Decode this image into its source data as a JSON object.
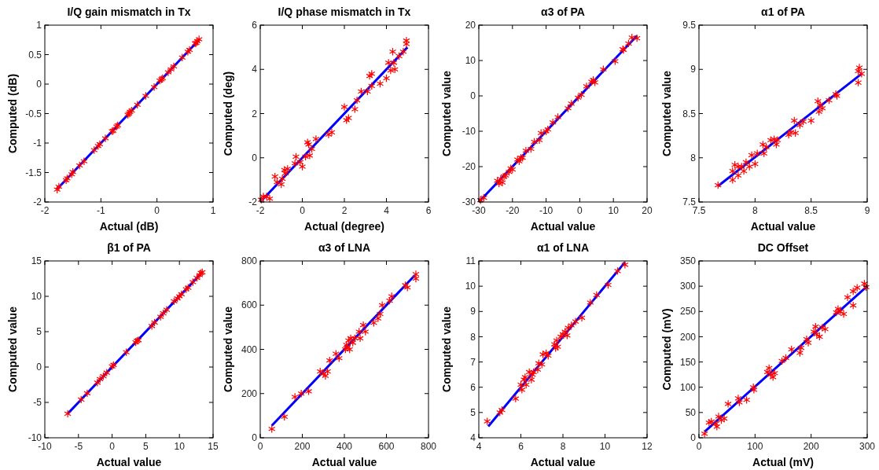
{
  "chart_data": [
    {
      "type": "scatter",
      "title": "I/Q gain mismatch in Tx",
      "xlabel": "Actual (dB)",
      "ylabel": "Computed (dB)",
      "xlim": [
        -2,
        1
      ],
      "ylim": [
        -2,
        1
      ],
      "xticks": [
        -2,
        -1,
        0,
        1
      ],
      "yticks": [
        -2,
        -1.5,
        -1,
        -0.5,
        0,
        0.5,
        1
      ],
      "series": [
        {
          "type": "scatter",
          "color": "#ff0000",
          "marker": "cross",
          "x": [
            -1.78,
            -1.75,
            -1.62,
            -1.6,
            -1.52,
            -1.5,
            -1.38,
            -1.3,
            -1.12,
            -1.05,
            -1.02,
            -0.92,
            -0.8,
            -0.78,
            -0.72,
            -0.7,
            -0.52,
            -0.5,
            -0.48,
            -0.45,
            -0.35,
            -0.2,
            -0.05,
            0.05,
            0.08,
            0.1,
            0.2,
            0.25,
            0.3,
            0.45,
            0.55,
            0.58,
            0.68,
            0.7,
            0.72,
            0.75
          ],
          "values": [
            -1.79,
            -1.74,
            -1.63,
            -1.6,
            -1.53,
            -1.49,
            -1.38,
            -1.31,
            -1.12,
            -1.05,
            -1.02,
            -0.92,
            -0.8,
            -0.79,
            -0.72,
            -0.7,
            -0.52,
            -0.5,
            -0.47,
            -0.45,
            -0.35,
            -0.2,
            -0.05,
            0.06,
            0.08,
            0.1,
            0.2,
            0.25,
            0.3,
            0.45,
            0.55,
            0.58,
            0.69,
            0.7,
            0.73,
            0.76
          ]
        },
        {
          "type": "line",
          "color": "#0000ff",
          "marker": "none",
          "line_style": "solid",
          "x": [
            -1.78,
            0.76
          ],
          "values": [
            -1.78,
            0.76
          ]
        }
      ]
    },
    {
      "type": "scatter",
      "title": "I/Q phase mismatch in Tx",
      "xlabel": "Actual (degree)",
      "ylabel": "Computed (deg)",
      "xlim": [
        -2,
        6
      ],
      "ylim": [
        -2,
        6
      ],
      "xticks": [
        -2,
        0,
        2,
        4,
        6
      ],
      "yticks": [
        -2,
        0,
        2,
        4,
        6
      ],
      "series": [
        {
          "type": "scatter",
          "color": "#ff0000",
          "marker": "cross",
          "x": [
            -1.95,
            -1.85,
            -1.7,
            -1.55,
            -1.3,
            -1.2,
            -1.0,
            -0.95,
            -0.85,
            -0.8,
            -0.7,
            -0.3,
            -0.35,
            -0.1,
            0,
            0.15,
            0.25,
            0.3,
            0.35,
            0.45,
            0.65,
            1.25,
            1.4,
            2.0,
            2.1,
            2.2,
            2.5,
            2.6,
            2.8,
            3.1,
            3.2,
            3.3,
            3.3,
            3.7,
            4.0,
            4.1,
            4.2,
            4.3,
            4.4,
            4.35,
            4.6,
            4.8,
            4.95,
            4.95
          ],
          "values": [
            -1.9,
            -1.75,
            -1.75,
            -1.85,
            -0.85,
            -1.1,
            -1.2,
            -0.95,
            -0.55,
            -0.7,
            -0.5,
            0.05,
            -0.25,
            -0.2,
            -0.4,
            0.05,
            0.7,
            0.6,
            0.1,
            0.4,
            0.85,
            1.05,
            1.15,
            2.3,
            1.7,
            1.8,
            2.2,
            2.6,
            3.0,
            3.0,
            3.7,
            3.8,
            3.25,
            3.35,
            3.6,
            4.3,
            3.95,
            4.8,
            4.0,
            4.3,
            4.6,
            4.8,
            5.3,
            5.15
          ]
        },
        {
          "type": "line",
          "color": "#0000ff",
          "marker": "none",
          "line_style": "solid",
          "x": [
            -1.9,
            5
          ],
          "values": [
            -1.9,
            5
          ]
        }
      ]
    },
    {
      "type": "scatter",
      "title": "α3 of PA",
      "xlabel": "Actual value",
      "ylabel": "Computed value",
      "xlim": [
        -30,
        20
      ],
      "ylim": [
        -30,
        20
      ],
      "xticks": [
        -30,
        -20,
        -10,
        0,
        10,
        20
      ],
      "yticks": [
        -30,
        -20,
        -10,
        0,
        10,
        20
      ],
      "series": [
        {
          "type": "scatter",
          "color": "#ff0000",
          "marker": "cross",
          "x": [
            -29.5,
            -28.5,
            -24.5,
            -24,
            -23.5,
            -23,
            -22.5,
            -22,
            -21,
            -20.5,
            -20,
            -18.5,
            -18,
            -17.5,
            -17,
            -16,
            -14.5,
            -13.5,
            -12,
            -11.5,
            -10,
            -9.5,
            -8,
            -6.5,
            -3.5,
            -2.5,
            -0.5,
            0.5,
            2,
            3.5,
            4,
            4.5,
            7,
            10.5,
            12.8,
            13,
            14.5,
            15.5,
            17
          ],
          "values": [
            -29.5,
            -28.8,
            -24,
            -24.8,
            -23.5,
            -24.5,
            -22.8,
            -22.5,
            -21.5,
            -20.5,
            -20.8,
            -18,
            -18.5,
            -17.5,
            -17.5,
            -15.5,
            -15,
            -13,
            -12.5,
            -10.5,
            -10,
            -9.5,
            -7.5,
            -6,
            -3.5,
            -2.2,
            -0.5,
            0.3,
            2.7,
            4,
            4.5,
            3.8,
            7.5,
            9.8,
            13.2,
            13,
            14.8,
            16.5,
            16.3
          ]
        },
        {
          "type": "line",
          "color": "#0000ff",
          "marker": "none",
          "line_style": "solid",
          "x": [
            -29.5,
            17
          ],
          "values": [
            -29.5,
            17
          ]
        }
      ]
    },
    {
      "type": "scatter",
      "title": "α1 of PA",
      "xlabel": "Actual value",
      "ylabel": "Computed value",
      "xlim": [
        7.5,
        9
      ],
      "ylim": [
        7.5,
        9.5
      ],
      "xticks": [
        7.5,
        8,
        8.5,
        9
      ],
      "yticks": [
        7.5,
        8,
        8.5,
        9,
        9.5
      ],
      "series": [
        {
          "type": "scatter",
          "color": "#ff0000",
          "marker": "cross",
          "x": [
            7.67,
            7.8,
            7.8,
            7.82,
            7.85,
            7.85,
            7.88,
            7.9,
            7.92,
            7.95,
            7.97,
            8.0,
            8.02,
            8.07,
            8.08,
            8.1,
            8.14,
            8.17,
            8.19,
            8.2,
            8.3,
            8.32,
            8.35,
            8.36,
            8.4,
            8.43,
            8.5,
            8.56,
            8.57,
            8.58,
            8.6,
            8.66,
            8.73,
            8.72,
            8.92,
            8.92,
            8.93,
            8.95
          ],
          "values": [
            7.69,
            7.75,
            7.85,
            7.92,
            7.9,
            7.8,
            7.9,
            7.85,
            7.95,
            7.9,
            8.03,
            7.93,
            8.05,
            8.15,
            8.05,
            8.12,
            8.2,
            8.21,
            8.15,
            8.2,
            8.26,
            8.29,
            8.42,
            8.28,
            8.37,
            8.41,
            8.42,
            8.64,
            8.52,
            8.6,
            8.56,
            8.65,
            8.7,
            8.72,
            8.85,
            8.98,
            9.02,
            8.95
          ]
        },
        {
          "type": "line",
          "color": "#0000ff",
          "marker": "none",
          "line_style": "solid",
          "x": [
            7.67,
            8.95
          ],
          "values": [
            7.68,
            8.95
          ]
        }
      ]
    },
    {
      "type": "scatter",
      "title": "β1 of PA",
      "xlabel": "Actual value",
      "ylabel": "Computed value",
      "xlim": [
        -10,
        15
      ],
      "ylim": [
        -10,
        15
      ],
      "xticks": [
        -10,
        -5,
        0,
        5,
        10,
        15
      ],
      "yticks": [
        -10,
        -5,
        0,
        5,
        10,
        15
      ],
      "series": [
        {
          "type": "scatter",
          "color": "#ff0000",
          "marker": "cross",
          "x": [
            -6.6,
            -4.6,
            -3.7,
            -2.2,
            -1.8,
            -1.3,
            -0.8,
            0,
            0.2,
            2.1,
            3.5,
            3.7,
            3.9,
            5.9,
            6.3,
            7.2,
            7.6,
            8.1,
            9.2,
            9.7,
            10,
            10.3,
            11,
            11.3,
            12,
            12.6,
            13,
            13.2,
            13.4
          ],
          "values": [
            -6.6,
            -4.6,
            -3.7,
            -2.2,
            -1.7,
            -1.3,
            -0.8,
            0.1,
            0.3,
            2.1,
            3.5,
            3.7,
            3.8,
            5.8,
            6.3,
            7.1,
            7.6,
            8.1,
            9.3,
            9.7,
            10,
            10.3,
            11,
            11.2,
            12,
            12.6,
            13,
            13.3,
            13.4
          ]
        },
        {
          "type": "line",
          "color": "#0000ff",
          "marker": "none",
          "line_style": "solid",
          "x": [
            -6.6,
            13.4
          ],
          "values": [
            -6.6,
            13.4
          ]
        }
      ]
    },
    {
      "type": "scatter",
      "title": "α3 of LNA",
      "xlabel": "Actual value",
      "ylabel": "Computed value",
      "xlim": [
        0,
        800
      ],
      "ylim": [
        0,
        800
      ],
      "xticks": [
        0,
        200,
        400,
        600,
        800
      ],
      "yticks": [
        0,
        200,
        400,
        600,
        800
      ],
      "series": [
        {
          "type": "scatter",
          "color": "#ff0000",
          "marker": "cross",
          "x": [
            55,
            115,
            165,
            195,
            230,
            285,
            300,
            310,
            320,
            330,
            360,
            375,
            405,
            410,
            415,
            420,
            425,
            430,
            440,
            450,
            470,
            475,
            490,
            500,
            540,
            560,
            570,
            580,
            615,
            625,
            690,
            700,
            740,
            740
          ],
          "values": [
            40,
            95,
            185,
            200,
            210,
            300,
            290,
            280,
            300,
            350,
            380,
            360,
            400,
            420,
            410,
            440,
            400,
            450,
            430,
            450,
            480,
            450,
            510,
            480,
            520,
            540,
            560,
            600,
            620,
            640,
            690,
            680,
            740,
            720
          ]
        },
        {
          "type": "line",
          "color": "#0000ff",
          "marker": "none",
          "line_style": "solid",
          "x": [
            55,
            735
          ],
          "values": [
            55,
            735
          ]
        }
      ]
    },
    {
      "type": "scatter",
      "title": "α1 of LNA",
      "xlabel": "Actual value",
      "ylabel": "Computed value",
      "xlim": [
        4,
        12
      ],
      "ylim": [
        4,
        11
      ],
      "xticks": [
        4,
        6,
        8,
        10,
        12
      ],
      "yticks": [
        4,
        5,
        6,
        7,
        8,
        9,
        10,
        11
      ],
      "series": [
        {
          "type": "scatter",
          "color": "#ff0000",
          "marker": "cross",
          "x": [
            4.4,
            5.0,
            5.1,
            5.75,
            6.0,
            6.05,
            6.15,
            6.2,
            6.25,
            6.4,
            6.5,
            6.55,
            6.6,
            6.8,
            6.85,
            7.0,
            7.05,
            7.2,
            7.3,
            7.6,
            7.65,
            7.7,
            7.75,
            7.9,
            8.0,
            8.1,
            8.2,
            8.25,
            8.4,
            8.6,
            8.9,
            9.3,
            9.6,
            10.15,
            10.6,
            10.95
          ],
          "values": [
            4.65,
            5.0,
            5.1,
            5.55,
            6.1,
            5.9,
            6.3,
            6.4,
            6.1,
            6.6,
            6.3,
            6.5,
            6.6,
            6.7,
            6.95,
            6.9,
            7.3,
            7.35,
            7.25,
            7.7,
            7.55,
            7.85,
            7.6,
            8.0,
            8.1,
            8.2,
            8.05,
            8.35,
            8.45,
            8.6,
            8.75,
            9.35,
            9.65,
            10.05,
            10.6,
            10.85
          ]
        },
        {
          "type": "line",
          "color": "#0000ff",
          "marker": "none",
          "line_style": "solid",
          "x": [
            4.45,
            10.95
          ],
          "values": [
            4.45,
            10.95
          ]
        }
      ]
    },
    {
      "type": "scatter",
      "title": "DC Offset",
      "xlabel": "Actual (mV)",
      "ylabel": "Computed (mV)",
      "xlim": [
        0,
        300
      ],
      "ylim": [
        0,
        350
      ],
      "xticks": [
        0,
        100,
        200,
        300
      ],
      "yticks": [
        0,
        50,
        100,
        150,
        200,
        250,
        300,
        350
      ],
      "series": [
        {
          "type": "scatter",
          "color": "#ff0000",
          "marker": "cross",
          "x": [
            10,
            18,
            22,
            30,
            32,
            35,
            40,
            45,
            52,
            70,
            72,
            85,
            97,
            98,
            122,
            125,
            128,
            132,
            135,
            148,
            155,
            165,
            180,
            182,
            192,
            195,
            205,
            208,
            210,
            215,
            220,
            225,
            245,
            248,
            252,
            258,
            265,
            275,
            275,
            282,
            295,
            298
          ],
          "values": [
            8,
            30,
            32,
            28,
            22,
            42,
            35,
            38,
            67,
            78,
            70,
            75,
            100,
            95,
            130,
            138,
            125,
            120,
            128,
            152,
            158,
            175,
            168,
            178,
            195,
            188,
            210,
            220,
            205,
            200,
            218,
            215,
            248,
            255,
            250,
            245,
            278,
            290,
            262,
            297,
            305,
            298
          ]
        },
        {
          "type": "line",
          "color": "#0000ff",
          "marker": "none",
          "line_style": "solid",
          "x": [
            10,
            300
          ],
          "values": [
            12,
            300
          ]
        }
      ]
    }
  ]
}
